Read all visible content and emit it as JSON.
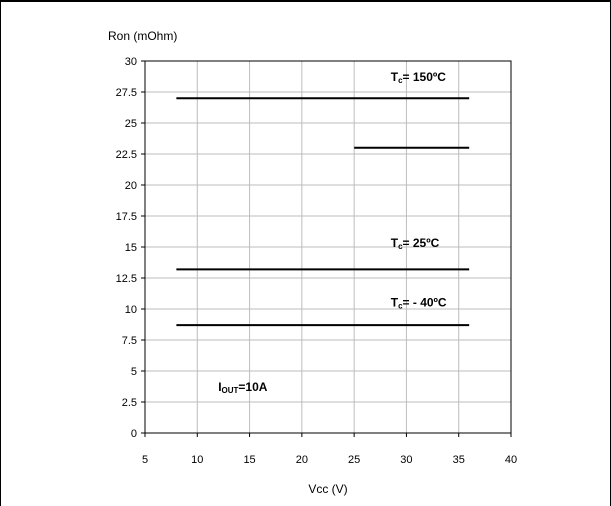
{
  "chart_data": {
    "type": "line",
    "ylabel": "Ron (mOhm)",
    "xlabel": "Vcc (V)",
    "xlim": [
      5,
      40
    ],
    "ylim": [
      0,
      30
    ],
    "xticks": [
      5,
      10,
      15,
      20,
      25,
      30,
      35,
      40
    ],
    "xtick_labels": [
      "5",
      "10",
      "15",
      "20",
      "25",
      "30",
      "35",
      "40"
    ],
    "yticks": [
      0,
      2.5,
      5,
      7.5,
      10,
      12.5,
      15,
      17.5,
      20,
      22.5,
      25,
      27.5,
      30
    ],
    "ytick_labels": [
      "0",
      "2.5",
      "5",
      "7.5",
      "10",
      "12.5",
      "15",
      "17.5",
      "20",
      "22.5",
      "25",
      "27.5",
      "30"
    ],
    "grid": true,
    "legend": "none",
    "series": [
      {
        "name": "Tc= 150ºC",
        "color": "#000000",
        "x": [
          8,
          36
        ],
        "y": [
          27,
          27
        ]
      },
      {
        "name": "",
        "color": "#000000",
        "x": [
          25,
          36
        ],
        "y": [
          23,
          23
        ]
      },
      {
        "name": "Tc= 25ºC",
        "color": "#000000",
        "x": [
          8,
          36
        ],
        "y": [
          13.2,
          13.2
        ]
      },
      {
        "name": "Tc= - 40ºC",
        "color": "#000000",
        "x": [
          8,
          36
        ],
        "y": [
          8.7,
          8.7
        ]
      }
    ],
    "annotations": [
      {
        "id": "t150",
        "main": "T",
        "sub": "c",
        "rest": "= 150ºC",
        "x": 28.5,
        "y": 28.4
      },
      {
        "id": "t25",
        "main": "T",
        "sub": "c",
        "rest": "= 25ºC",
        "x": 28.5,
        "y": 15.0
      },
      {
        "id": "tm40",
        "main": "T",
        "sub": "c",
        "rest": "= - 40ºC",
        "x": 28.5,
        "y": 10.2
      },
      {
        "id": "iout",
        "main": "I",
        "sub": "OUT",
        "rest": "=10A",
        "x": 12.0,
        "y": 3.4
      }
    ]
  }
}
